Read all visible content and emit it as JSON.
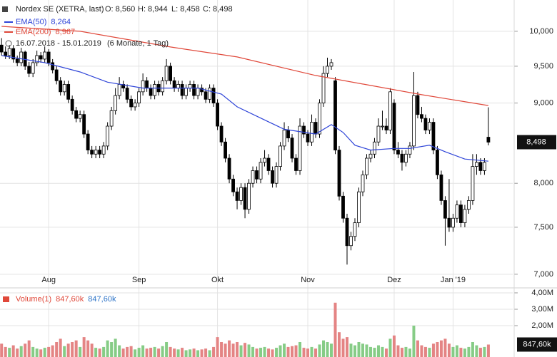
{
  "chart_data": {
    "type": "candlestick",
    "title": "Nordex SE (XETRA, last)",
    "ohlc_labels": [
      "O: 8,560",
      "H: 8,944",
      "L: 8,458",
      "C: 8,498"
    ],
    "range_label": "16.07.2018 - 15.01.2019",
    "period_label": "(6 Monate, 1 Tag)",
    "last_label": "8,498",
    "log_scale": true,
    "grid": true,
    "ylim": [
      6890,
      10470
    ],
    "yticks": [
      {
        "value": 7000,
        "label": "7,000"
      },
      {
        "value": 7500,
        "label": "7,500"
      },
      {
        "value": 8000,
        "label": "8,000"
      },
      {
        "value": 9000,
        "label": "9,000"
      },
      {
        "value": 9500,
        "label": "9,500"
      },
      {
        "value": 10000,
        "label": "10,000"
      }
    ],
    "xlim": [
      -0.4,
      130.2
    ],
    "xticks": [
      {
        "value": 12,
        "label": "Aug"
      },
      {
        "value": 35,
        "label": "Sep"
      },
      {
        "value": 55,
        "label": "Okt"
      },
      {
        "value": 78,
        "label": "Nov"
      },
      {
        "value": 100,
        "label": "Dez"
      },
      {
        "value": 115,
        "label": "Jan '19"
      }
    ],
    "up_color": "#ffffff",
    "down_color": "#000000",
    "open": [
      9800,
      9700,
      9650,
      9750,
      9600,
      9550,
      9700,
      9500,
      9400,
      9550,
      9650,
      9600,
      9700,
      9550,
      9450,
      9300,
      9150,
      9250,
      9050,
      8900,
      8800,
      8850,
      8600,
      8400,
      8350,
      8400,
      8350,
      8450,
      8700,
      8900,
      9100,
      9250,
      9200,
      9050,
      8950,
      9000,
      9150,
      9300,
      9200,
      9100,
      9250,
      9150,
      9300,
      9500,
      9300,
      9200,
      9250,
      9100,
      9200,
      9250,
      9100,
      9200,
      9150,
      9050,
      9200,
      9000,
      8700,
      8500,
      8300,
      8050,
      7900,
      7800,
      7950,
      7700,
      8000,
      8150,
      8050,
      8250,
      8300,
      8150,
      8000,
      8200,
      8450,
      8650,
      8550,
      8300,
      8150,
      8700,
      8600,
      8500,
      8750,
      8600,
      9000,
      9400,
      9500,
      9300,
      8400,
      7850,
      7600,
      7300,
      7400,
      7550,
      7900,
      8100,
      8300,
      8350,
      8500,
      8700,
      8700,
      8650,
      9000,
      8400,
      8350,
      8250,
      8350,
      8450,
      9100,
      8850,
      8800,
      8650,
      8750,
      8400,
      8100,
      7800,
      7600,
      7500,
      7600,
      7750,
      7550,
      7700,
      7800,
      8200,
      8250,
      8150,
      8560
    ],
    "high": [
      9900,
      9780,
      9800,
      9800,
      9650,
      9760,
      9720,
      9560,
      9600,
      9720,
      9700,
      9780,
      9740,
      9600,
      9500,
      9350,
      9300,
      9300,
      9100,
      8950,
      8900,
      8900,
      8650,
      8450,
      8450,
      8450,
      8500,
      8750,
      8950,
      9200,
      9350,
      9300,
      9250,
      9100,
      9050,
      9200,
      9400,
      9350,
      9250,
      9300,
      9300,
      9350,
      9600,
      9550,
      9350,
      9300,
      9300,
      9250,
      9300,
      9300,
      9250,
      9250,
      9200,
      9250,
      9250,
      9050,
      8750,
      8550,
      8350,
      8100,
      7950,
      8000,
      8000,
      8050,
      8200,
      8200,
      8300,
      8400,
      8350,
      8200,
      8250,
      8500,
      8750,
      8700,
      8600,
      8350,
      8800,
      8750,
      8650,
      8850,
      8800,
      9050,
      9500,
      9620,
      9600,
      9350,
      8450,
      7900,
      7650,
      7450,
      7600,
      7950,
      8150,
      8350,
      8400,
      8550,
      8800,
      8900,
      8800,
      9200,
      9050,
      8500,
      8400,
      8400,
      8500,
      9420,
      9150,
      8950,
      8850,
      8800,
      8800,
      8450,
      8150,
      7850,
      8050,
      7650,
      7800,
      7800,
      7750,
      7850,
      8350,
      8350,
      8300,
      8300,
      8944
    ],
    "low": [
      9650,
      9600,
      9600,
      9550,
      9500,
      9500,
      9450,
      9350,
      9350,
      9500,
      9550,
      9550,
      9500,
      9400,
      9250,
      9100,
      9100,
      9000,
      8850,
      8750,
      8750,
      8550,
      8350,
      8300,
      8300,
      8300,
      8300,
      8400,
      8650,
      8850,
      9050,
      9150,
      9000,
      8900,
      8900,
      8950,
      9100,
      9150,
      9050,
      9050,
      9100,
      9100,
      9250,
      9250,
      9150,
      9150,
      9050,
      9050,
      9150,
      9050,
      9050,
      9100,
      9000,
      9000,
      8950,
      8650,
      8450,
      8250,
      8000,
      7850,
      7700,
      7750,
      7600,
      7650,
      7950,
      8000,
      8000,
      8200,
      8100,
      7950,
      7950,
      8150,
      8400,
      8500,
      8250,
      8100,
      8100,
      8550,
      8450,
      8450,
      8550,
      8550,
      8950,
      9350,
      9450,
      8350,
      7800,
      7550,
      7100,
      7250,
      7350,
      7500,
      7850,
      8050,
      8250,
      8300,
      8450,
      8650,
      8600,
      8600,
      8350,
      8300,
      8150,
      8200,
      8300,
      8400,
      8800,
      8750,
      8600,
      8600,
      8350,
      8050,
      7750,
      7300,
      7450,
      7450,
      7550,
      7500,
      7500,
      7650,
      7750,
      8100,
      8100,
      8100,
      8458
    ],
    "close": [
      9700,
      9650,
      9750,
      9600,
      9550,
      9700,
      9500,
      9400,
      9550,
      9650,
      9600,
      9700,
      9550,
      9450,
      9300,
      9150,
      9250,
      9050,
      8900,
      8800,
      8850,
      8600,
      8400,
      8350,
      8400,
      8350,
      8450,
      8700,
      8900,
      9100,
      9250,
      9200,
      9050,
      8950,
      9000,
      9150,
      9300,
      9200,
      9100,
      9250,
      9150,
      9300,
      9500,
      9300,
      9200,
      9250,
      9100,
      9200,
      9250,
      9100,
      9200,
      9150,
      9050,
      9200,
      9000,
      8700,
      8500,
      8300,
      8050,
      7900,
      7800,
      7950,
      7700,
      8000,
      8150,
      8050,
      8250,
      8300,
      8150,
      8000,
      8200,
      8450,
      8650,
      8550,
      8300,
      8150,
      8700,
      8600,
      8500,
      8750,
      8600,
      9000,
      9400,
      9500,
      9550,
      8400,
      7850,
      7600,
      7300,
      7400,
      7550,
      7900,
      8100,
      8300,
      8350,
      8500,
      8700,
      8700,
      8650,
      9150,
      8400,
      8350,
      8250,
      8350,
      8450,
      9100,
      8850,
      8800,
      8650,
      8750,
      8400,
      8100,
      7800,
      7600,
      7500,
      7600,
      7750,
      7550,
      7700,
      7800,
      8200,
      8250,
      8150,
      8250,
      8498
    ],
    "lines": [
      {
        "name": "EMA(50)",
        "value_label": "8,264",
        "color": "#2e44d8",
        "x": [
          0,
          11,
          20,
          27,
          36,
          50,
          56,
          60,
          67,
          72,
          80,
          84,
          87,
          90,
          94,
          100,
          104,
          109,
          113,
          118,
          124
        ],
        "values": [
          9650,
          9550,
          9420,
          9280,
          9200,
          9200,
          9120,
          8950,
          8780,
          8660,
          8600,
          8720,
          8620,
          8460,
          8400,
          8420,
          8420,
          8460,
          8380,
          8290,
          8264
        ]
      },
      {
        "name": "EMA(200)",
        "value_label": "8,967",
        "color": "#e0483a",
        "x": [
          0,
          20,
          43,
          60,
          80,
          94,
          107,
          124
        ],
        "values": [
          10073,
          10000,
          9773,
          9630,
          9372,
          9236,
          9111,
          8967
        ]
      }
    ],
    "volume": {
      "name": "Volume(1)",
      "legend_values": [
        {
          "text": "847,60k",
          "color": "#e0483a"
        },
        {
          "text": "847,60k",
          "color": "#2e74c8"
        }
      ],
      "last_label": "847,60k",
      "up_color": "#86cc86",
      "down_color": "#e48484",
      "ylim": [
        87000,
        4260000
      ],
      "yticks": [
        {
          "value": 2000000,
          "label": "2,00M"
        },
        {
          "value": 3000000,
          "label": "3,00M"
        },
        {
          "value": 4000000,
          "label": "4,00M"
        }
      ],
      "values": [
        900000,
        700000,
        650000,
        800000,
        600000,
        750000,
        900000,
        1100000,
        700000,
        600000,
        550000,
        650000,
        700000,
        800000,
        1000000,
        1200000,
        750000,
        900000,
        1000000,
        1100000,
        700000,
        1300000,
        1100000,
        900000,
        650000,
        600000,
        700000,
        1100000,
        1000000,
        1200000,
        800000,
        600000,
        700000,
        750000,
        550000,
        650000,
        800000,
        600000,
        650000,
        700000,
        600000,
        750000,
        1000000,
        700000,
        600000,
        550000,
        650000,
        500000,
        550000,
        600000,
        500000,
        550000,
        600000,
        500000,
        700000,
        1300000,
        1000000,
        900000,
        1100000,
        900000,
        1000000,
        800000,
        950000,
        850000,
        700000,
        600000,
        650000,
        700000,
        600000,
        550000,
        650000,
        800000,
        900000,
        700000,
        750000,
        800000,
        1000000,
        650000,
        600000,
        700000,
        600000,
        850000,
        1100000,
        1000000,
        900000,
        3400000,
        1600000,
        1200000,
        1300000,
        900000,
        800000,
        1000000,
        900000,
        850000,
        700000,
        650000,
        800000,
        700000,
        600000,
        1200000,
        1400000,
        800000,
        650000,
        700000,
        600000,
        2000000,
        1100000,
        800000,
        700000,
        650000,
        900000,
        1000000,
        1100000,
        1200000,
        900000,
        700000,
        800000,
        650000,
        600000,
        700000,
        1000000,
        800000,
        650000,
        700000,
        847600
      ]
    }
  }
}
